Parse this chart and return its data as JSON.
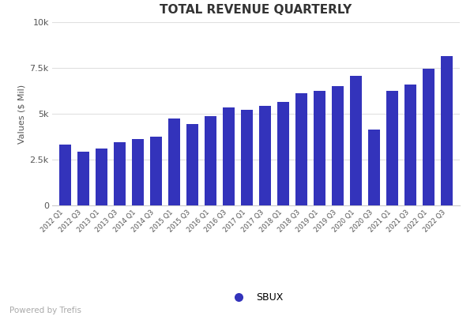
{
  "title": "TOTAL REVENUE QUARTERLY",
  "ylabel": "Values ($ Mil)",
  "legend_label": "SBUX",
  "powered_by": "Powered by Trefis",
  "bar_color": "#3333bb",
  "ylim": [
    0,
    10000
  ],
  "yticks": [
    0,
    2500,
    5000,
    7500,
    10000
  ],
  "ytick_labels": [
    "0",
    "2.5k",
    "5k",
    "7.5k",
    "10k"
  ],
  "categories": [
    "2012 Q1",
    "2012 Q3",
    "2013 Q1",
    "2013 Q3",
    "2014 Q1",
    "2014 Q3",
    "2015 Q1",
    "2015 Q3",
    "2016 Q1",
    "2016 Q3",
    "2017 Q1",
    "2017 Q3",
    "2018 Q1",
    "2018 Q3",
    "2019 Q1",
    "2019 Q3",
    "2020 Q1",
    "2020 Q3",
    "2021 Q1",
    "2021 Q3",
    "2022 Q1",
    "2022 Q3"
  ],
  "values": [
    3300,
    2950,
    3100,
    3450,
    3600,
    3750,
    4750,
    4450,
    4850,
    5350,
    5200,
    5450,
    5650,
    6100,
    6250,
    6500,
    7050,
    4150,
    6250,
    6600,
    7450,
    8150
  ]
}
